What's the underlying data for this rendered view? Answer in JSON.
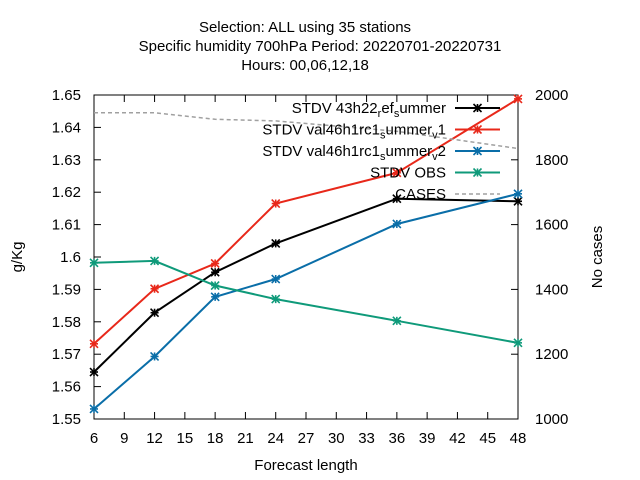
{
  "chart_data": {
    "type": "line",
    "title": [
      "Selection: ALL using    35 stations",
      "Specific humidity 700hPa   Period: 20220701-20220731",
      "Hours:  00,06,12,18"
    ],
    "xlabel": "Forecast length",
    "ylabel": "g/Kg",
    "y2label": "No cases",
    "x": [
      6,
      12,
      18,
      24,
      36,
      48
    ],
    "xticks": [
      "6",
      "9",
      "12",
      "15",
      "18",
      "21",
      "24",
      "27",
      "30",
      "33",
      "36",
      "39",
      "42",
      "45",
      "48"
    ],
    "xlim": [
      6,
      48
    ],
    "ylim": [
      1.55,
      1.65
    ],
    "yticks": [
      "1.55",
      "1.56",
      "1.57",
      "1.58",
      "1.59",
      "1.6",
      "1.61",
      "1.62",
      "1.63",
      "1.64",
      "1.65"
    ],
    "y2lim": [
      1000,
      2000
    ],
    "y2ticks": [
      "1000",
      "1200",
      "1400",
      "1600",
      "1800",
      "2000"
    ],
    "grid": false,
    "legend_position": "top-right",
    "series": [
      {
        "name": "STDV 43h22_ref_summer",
        "legend_main": "STDV 43h22",
        "legend_parts": [
          [
            "r",
            "sub"
          ],
          [
            "ef",
            ""
          ],
          [
            "s",
            "sub"
          ],
          [
            "ummer",
            ""
          ]
        ],
        "axis": "y",
        "color": "#000000",
        "marker": "star",
        "values": [
          1.5645,
          1.5828,
          1.5953,
          1.6042,
          1.618,
          1.6172
        ]
      },
      {
        "name": "STDV val46h1rc1_summer_v1",
        "legend_main": "STDV val46h1rc1",
        "legend_parts": [
          [
            "s",
            "sub"
          ],
          [
            "ummer",
            ""
          ],
          [
            "v",
            "sub"
          ],
          [
            "1",
            ""
          ]
        ],
        "axis": "y",
        "color": "#e8281a",
        "marker": "star",
        "values": [
          1.5732,
          1.5902,
          1.598,
          1.6165,
          1.626,
          1.6488
        ]
      },
      {
        "name": "STDV val46h1rc1_summer_v2",
        "legend_main": "STDV val46h1rc1",
        "legend_parts": [
          [
            "s",
            "sub"
          ],
          [
            "ummer",
            ""
          ],
          [
            "v",
            "sub"
          ],
          [
            "2",
            ""
          ]
        ],
        "axis": "y",
        "color": "#0a6ea8",
        "marker": "star",
        "values": [
          1.5531,
          1.5693,
          1.5877,
          1.5932,
          1.6102,
          1.6195
        ]
      },
      {
        "name": "STDV OBS",
        "legend_main": "STDV OBS",
        "legend_parts": [],
        "axis": "y",
        "color": "#0f9a7a",
        "marker": "star",
        "values": [
          1.5982,
          1.5988,
          1.5912,
          1.587,
          1.5803,
          1.5735
        ]
      },
      {
        "name": "CASES",
        "legend_main": "CASES",
        "legend_parts": [],
        "axis": "y2",
        "color": "#a0a0a0",
        "marker": "none",
        "dashed": true,
        "x": [
          6,
          12,
          18,
          24,
          36,
          48
        ],
        "values": [
          1945,
          1945,
          1925,
          1920,
          1888,
          1835
        ]
      }
    ]
  }
}
